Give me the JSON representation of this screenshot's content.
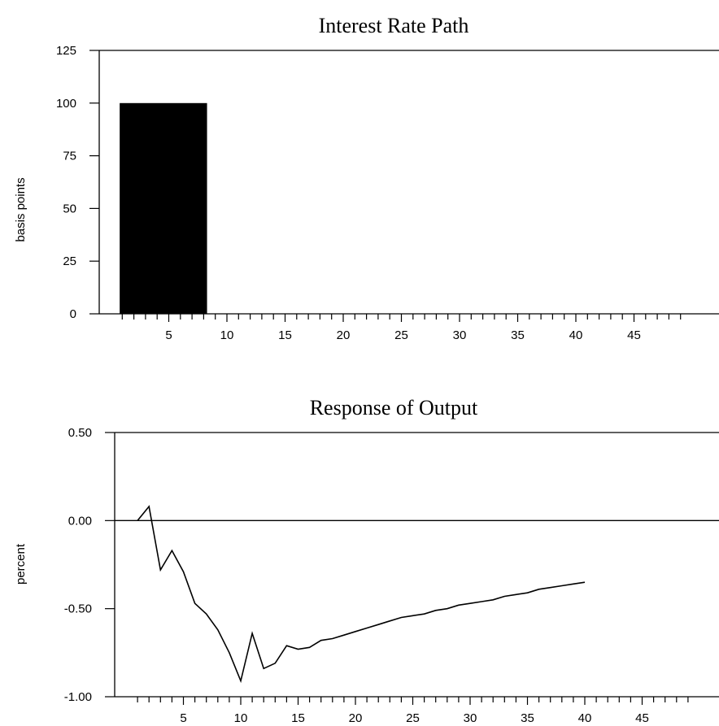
{
  "chart_data": [
    {
      "type": "bar",
      "title": "Interest Rate Path",
      "xlabel": "",
      "ylabel": "basis points",
      "ylim": [
        0,
        125
      ],
      "xlim": [
        0,
        49
      ],
      "yticks": [
        0,
        25,
        50,
        75,
        100,
        125
      ],
      "ytick_labels": [
        "0",
        "25",
        "50",
        "75",
        "100",
        "125"
      ],
      "xticks": [
        5,
        10,
        15,
        20,
        25,
        30,
        35,
        40,
        45
      ],
      "xtick_labels": [
        "5",
        "10",
        "15",
        "20",
        "25",
        "30",
        "35",
        "40",
        "45"
      ],
      "bars": [
        {
          "x_start": 1,
          "x_end": 8,
          "value": 100
        }
      ],
      "grid": false
    },
    {
      "type": "line",
      "title": "Response of Output",
      "xlabel": "",
      "ylabel": "percent",
      "ylim": [
        -1.0,
        0.5
      ],
      "xlim": [
        0,
        49
      ],
      "yticks": [
        0.5,
        0.0,
        -0.5,
        -1.0
      ],
      "ytick_labels": [
        "0.50",
        "0.00",
        "-0.50",
        "-1.00"
      ],
      "xticks": [
        5,
        10,
        15,
        20,
        25,
        30,
        35,
        40,
        45
      ],
      "xtick_labels": [
        "5",
        "10",
        "15",
        "20",
        "25",
        "30",
        "35",
        "40",
        "45"
      ],
      "zero_line": true,
      "x": [
        1,
        2,
        3,
        4,
        5,
        6,
        7,
        8,
        9,
        10,
        11,
        12,
        13,
        14,
        15,
        16,
        17,
        18,
        19,
        20,
        21,
        22,
        23,
        24,
        25,
        26,
        27,
        28,
        29,
        30,
        31,
        32,
        33,
        34,
        35,
        36,
        37,
        38,
        39,
        40
      ],
      "series": [
        {
          "values": [
            0.0,
            0.08,
            -0.28,
            -0.17,
            -0.29,
            -0.47,
            -0.53,
            -0.62,
            -0.75,
            -0.91,
            -0.64,
            -0.84,
            -0.81,
            -0.71,
            -0.73,
            -0.72,
            -0.68,
            -0.67,
            -0.65,
            -0.63,
            -0.61,
            -0.59,
            -0.57,
            -0.55,
            -0.54,
            -0.53,
            -0.51,
            -0.5,
            -0.48,
            -0.47,
            -0.46,
            -0.45,
            -0.43,
            -0.42,
            -0.41,
            -0.39,
            -0.38,
            -0.37,
            -0.36,
            -0.35
          ]
        }
      ],
      "grid": false
    }
  ]
}
